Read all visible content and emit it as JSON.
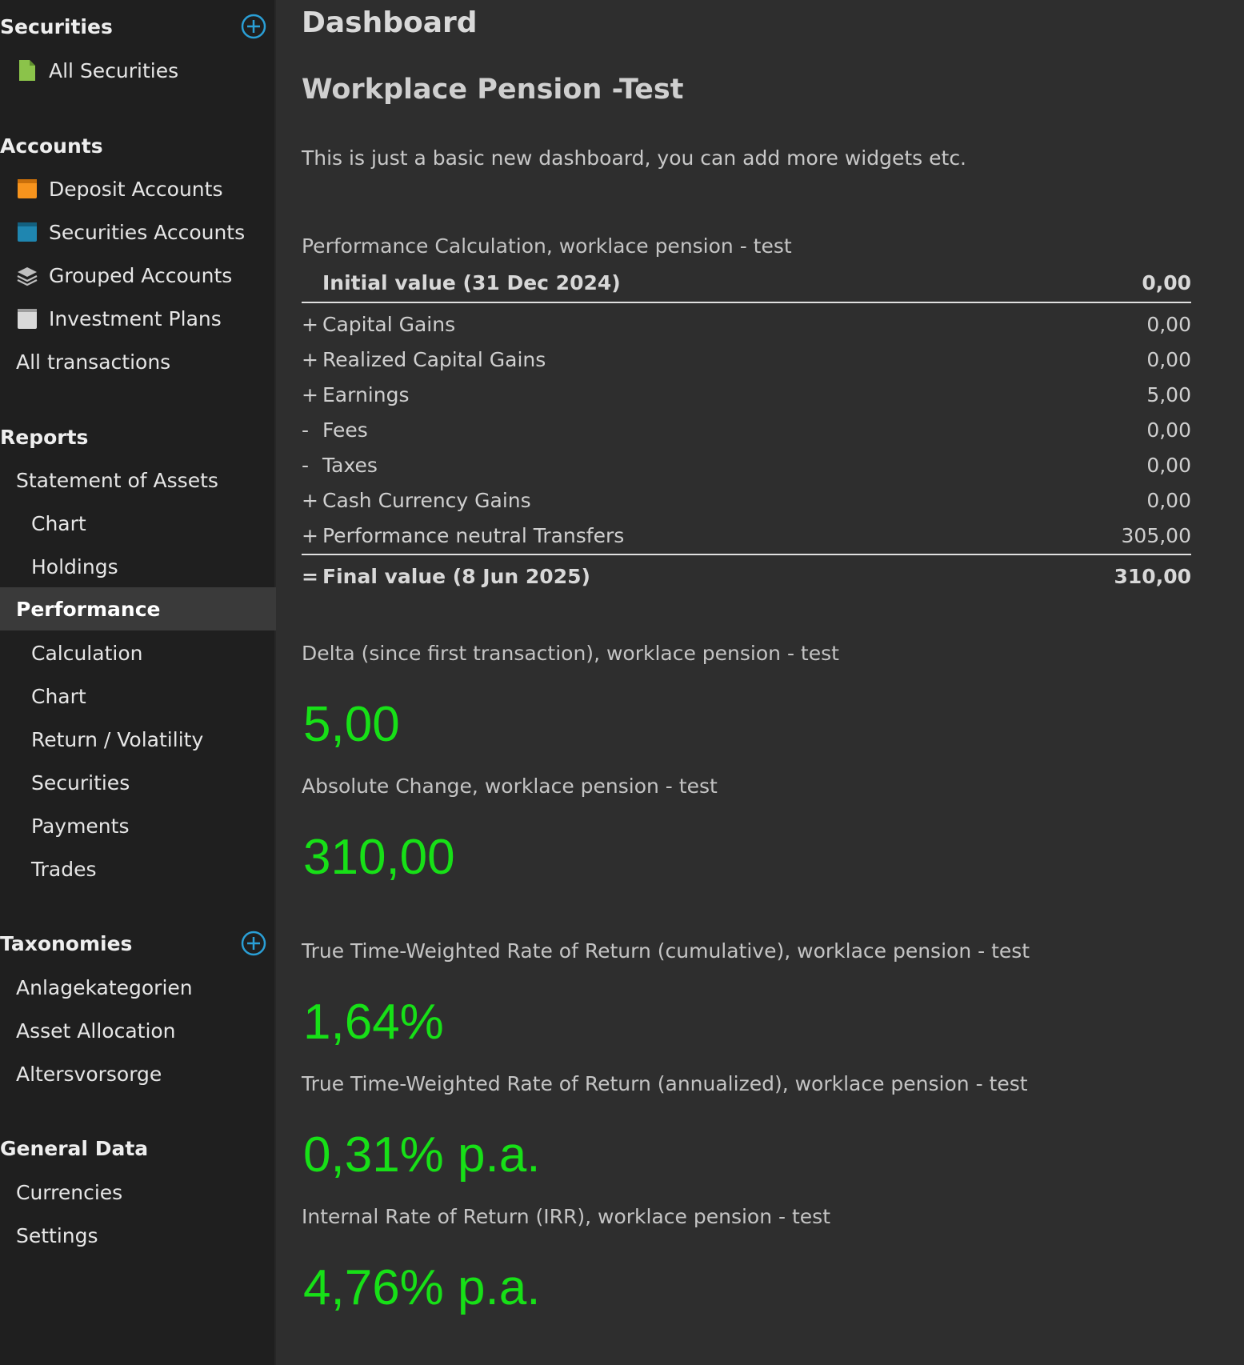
{
  "sidebar": {
    "securities": {
      "header": "Securities",
      "items": [
        "All Securities"
      ]
    },
    "accounts": {
      "header": "Accounts",
      "items": [
        "Deposit Accounts",
        "Securities Accounts",
        "Grouped Accounts",
        "Investment Plans"
      ],
      "all_transactions": "All transactions"
    },
    "reports": {
      "header": "Reports",
      "statement_of_assets": "Statement of Assets",
      "statement_children": [
        "Chart",
        "Holdings"
      ],
      "performance": "Performance",
      "performance_children": [
        "Calculation",
        "Chart",
        "Return / Volatility",
        "Securities",
        "Payments",
        "Trades"
      ]
    },
    "taxonomies": {
      "header": "Taxonomies",
      "items": [
        "Anlagekategorien",
        "Asset Allocation",
        "Altersvorsorge"
      ]
    },
    "general_data": {
      "header": "General Data",
      "items": [
        "Currencies",
        "Settings"
      ]
    },
    "icon_colors": {
      "all_securities": "#8bc34a",
      "deposit_accounts": "#f7941d",
      "securities_accounts": "#1f86b0",
      "grouped_accounts": "#bfbfbf",
      "investment_plans": "#d9d9d9",
      "add": "#2a9fd6"
    }
  },
  "main": {
    "page_title": "Dashboard",
    "dashboard_name": "Workplace Pension -Test",
    "description": "This is just a basic new dashboard, you can add more widgets etc.",
    "performance_calc": {
      "title": "Performance Calculation, worklace pension - test",
      "initial": {
        "label": "Initial value (31 Dec 2024)",
        "value": "0,00"
      },
      "rows": [
        {
          "op": "+",
          "label": "Capital Gains",
          "value": "0,00"
        },
        {
          "op": "+",
          "label": "Realized Capital Gains",
          "value": "0,00"
        },
        {
          "op": "+",
          "label": "Earnings",
          "value": "5,00"
        },
        {
          "op": "-",
          "label": "Fees",
          "value": "0,00"
        },
        {
          "op": "-",
          "label": "Taxes",
          "value": "0,00"
        },
        {
          "op": "+",
          "label": "Cash Currency Gains",
          "value": "0,00"
        },
        {
          "op": "+",
          "label": "Performance neutral Transfers",
          "value": "305,00"
        }
      ],
      "final": {
        "op": "=",
        "label": "Final value (8 Jun 2025)",
        "value": "310,00"
      }
    },
    "kpis": [
      {
        "title": "Delta (since first transaction), worklace pension - test",
        "value": "5,00"
      },
      {
        "title": "Absolute Change, worklace pension - test",
        "value": "310,00"
      },
      {
        "title": "True Time-Weighted Rate of Return (cumulative), worklace pension - test",
        "value": "1,64%"
      },
      {
        "title": "True Time-Weighted Rate of Return (annualized), worklace pension - test",
        "value": "0,31% p.a."
      },
      {
        "title": "Internal Rate of Return (IRR), worklace pension - test",
        "value": "4,76% p.a."
      }
    ],
    "kpi_color": "#17e017"
  }
}
